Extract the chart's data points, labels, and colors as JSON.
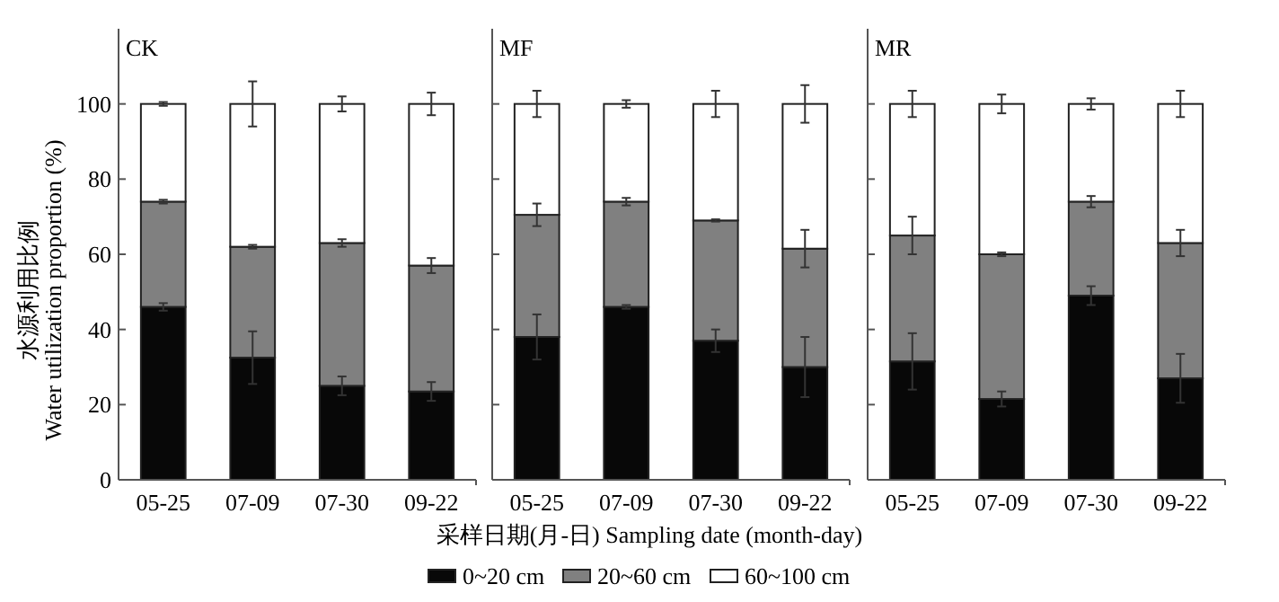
{
  "chart_data": [
    {
      "type": "bar",
      "title": "CK",
      "ylabel": "水源利用比例\nWater utilization proportion (%)",
      "categories": [
        "05-25",
        "07-09",
        "07-30",
        "09-22"
      ],
      "stacked": true,
      "ylim": [
        0,
        120
      ],
      "yticks": [
        0,
        20,
        40,
        60,
        80,
        100
      ],
      "legend": false,
      "series": [
        {
          "color": "#080808",
          "values": [
            46,
            32.5,
            25,
            23.5
          ],
          "errors": [
            1,
            7,
            2.5,
            2.5
          ]
        },
        {
          "color": "#808080",
          "values": [
            28,
            29.5,
            38,
            33.5
          ],
          "errors": [
            0.5,
            0.5,
            1,
            2
          ]
        },
        {
          "color": "#ffffff",
          "values": [
            26,
            38,
            37,
            43
          ],
          "errors": [
            0.5,
            6,
            2,
            3
          ]
        }
      ]
    },
    {
      "type": "bar",
      "title": "MF",
      "xlabel": "采样日期(月-日) Sampling date (month-day)",
      "categories": [
        "05-25",
        "07-09",
        "07-30",
        "09-22"
      ],
      "stacked": true,
      "ylim": [
        0,
        120
      ],
      "yticks": [
        0,
        20,
        40,
        60,
        80,
        100
      ],
      "tick_labels": "x",
      "legend": "bottom",
      "series": [
        {
          "name": "0~20 cm",
          "color": "#080808",
          "values": [
            38,
            46,
            37,
            30
          ],
          "errors": [
            6,
            0.5,
            3,
            8
          ]
        },
        {
          "name": "20~60 cm",
          "color": "#808080",
          "values": [
            32.5,
            28,
            32,
            31.5
          ],
          "errors": [
            3,
            1,
            0.3,
            5
          ]
        },
        {
          "name": "60~100 cm",
          "color": "#ffffff",
          "values": [
            29.5,
            26,
            31,
            38.5
          ],
          "errors": [
            3.5,
            1,
            3.5,
            5
          ]
        }
      ]
    },
    {
      "type": "bar",
      "title": "MR",
      "categories": [
        "05-25",
        "07-09",
        "07-30",
        "09-22"
      ],
      "stacked": true,
      "ylim": [
        0,
        120
      ],
      "yticks": [
        0,
        20,
        40,
        60,
        80,
        100
      ],
      "tick_labels": "x",
      "legend": false,
      "series": [
        {
          "color": "#080808",
          "values": [
            31.5,
            21.5,
            49,
            27
          ],
          "errors": [
            7.5,
            2,
            2.5,
            6.5
          ]
        },
        {
          "color": "#808080",
          "values": [
            33.5,
            38.5,
            25,
            36
          ],
          "errors": [
            5,
            0.5,
            1.5,
            3.5
          ]
        },
        {
          "color": "#ffffff",
          "values": [
            35,
            40,
            26,
            37
          ],
          "errors": [
            3.5,
            2.5,
            1.5,
            3.5
          ]
        }
      ]
    }
  ]
}
